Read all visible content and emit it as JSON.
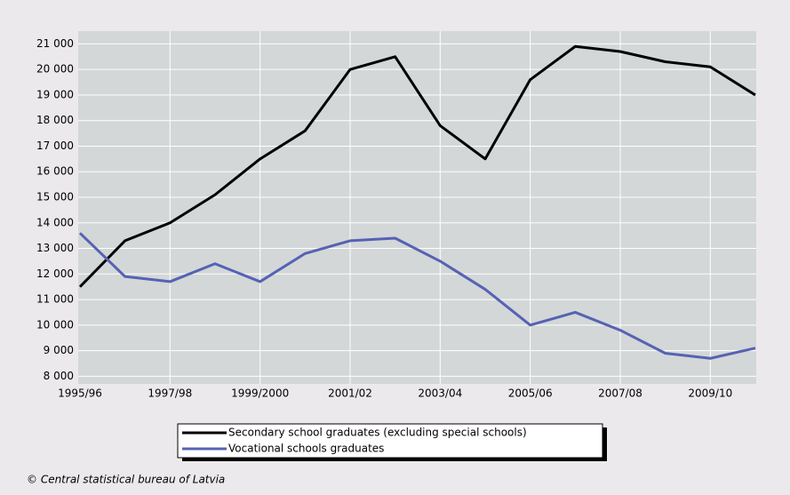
{
  "chart_data": {
    "type": "line",
    "categories": [
      "1995/96",
      null,
      "1997/98",
      null,
      "1999/2000",
      null,
      "2001/02",
      null,
      "2003/04",
      null,
      "2005/06",
      null,
      "2007/08",
      null,
      "2009/10",
      null
    ],
    "series": [
      {
        "name": "Secondary school graduates (excluding special schools)",
        "color": "#000000",
        "values": [
          11500,
          13300,
          14000,
          15100,
          16500,
          17600,
          20000,
          20500,
          17800,
          16500,
          19600,
          20900,
          20700,
          20300,
          20100,
          19000
        ]
      },
      {
        "name": "Vocational schools graduates",
        "color": "#5562b4",
        "values": [
          13600,
          11900,
          11700,
          12400,
          11700,
          12800,
          13300,
          13400,
          12500,
          11400,
          10000,
          10500,
          9800,
          8900,
          8700,
          9100
        ]
      }
    ],
    "ylim": [
      7700,
      21500
    ],
    "yticks": [
      {
        "value": 8000,
        "label": "8 000"
      },
      {
        "value": 9000,
        "label": "9 000"
      },
      {
        "value": 10000,
        "label": "10 000"
      },
      {
        "value": 11000,
        "label": "11 000"
      },
      {
        "value": 12000,
        "label": "12 000"
      },
      {
        "value": 13000,
        "label": "13 000"
      },
      {
        "value": 14000,
        "label": "14 000"
      },
      {
        "value": 15000,
        "label": "15 000"
      },
      {
        "value": 16000,
        "label": "16 000"
      },
      {
        "value": 17000,
        "label": "17 000"
      },
      {
        "value": 18000,
        "label": "18 000"
      },
      {
        "value": 19000,
        "label": "19 000"
      },
      {
        "value": 20000,
        "label": "20 000"
      },
      {
        "value": 21000,
        "label": "21 000"
      }
    ],
    "grid": true,
    "legend": "bottom",
    "source": "© Central statistical bureau of Latvia"
  }
}
